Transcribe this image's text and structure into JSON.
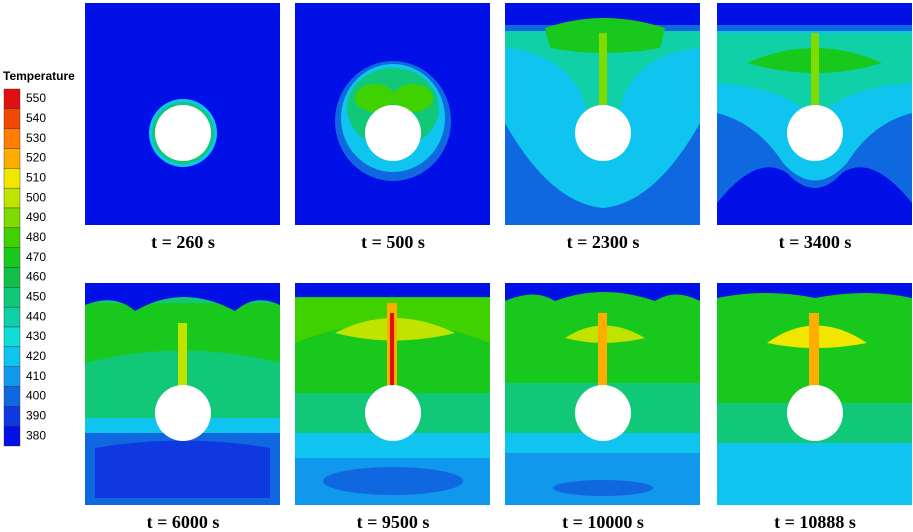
{
  "legend": {
    "title": "Temperature",
    "levels": [
      {
        "value": 550,
        "color": "#e01010"
      },
      {
        "value": 540,
        "color": "#f04a00"
      },
      {
        "value": 530,
        "color": "#ff7d00"
      },
      {
        "value": 520,
        "color": "#ffae00"
      },
      {
        "value": 510,
        "color": "#f0e600"
      },
      {
        "value": 500,
        "color": "#c0e400"
      },
      {
        "value": 490,
        "color": "#80dc00"
      },
      {
        "value": 480,
        "color": "#40d200"
      },
      {
        "value": 470,
        "color": "#18c81c"
      },
      {
        "value": 460,
        "color": "#10c048"
      },
      {
        "value": 450,
        "color": "#10c878"
      },
      {
        "value": 440,
        "color": "#10d0a8"
      },
      {
        "value": 430,
        "color": "#10dcd8"
      },
      {
        "value": 420,
        "color": "#10c4f0"
      },
      {
        "value": 410,
        "color": "#1098ec"
      },
      {
        "value": 400,
        "color": "#1068e0"
      },
      {
        "value": 390,
        "color": "#1038e0"
      },
      {
        "value": 380,
        "color": "#0010e6"
      }
    ]
  },
  "panels": [
    {
      "label": "t = 260 s"
    },
    {
      "label": "t = 500 s"
    },
    {
      "label": "t = 2300 s"
    },
    {
      "label": "t = 3400 s"
    },
    {
      "label": "t = 6000 s"
    },
    {
      "label": "t = 9500 s"
    },
    {
      "label": "t = 10000 s"
    },
    {
      "label": "t = 10888 s"
    }
  ]
}
